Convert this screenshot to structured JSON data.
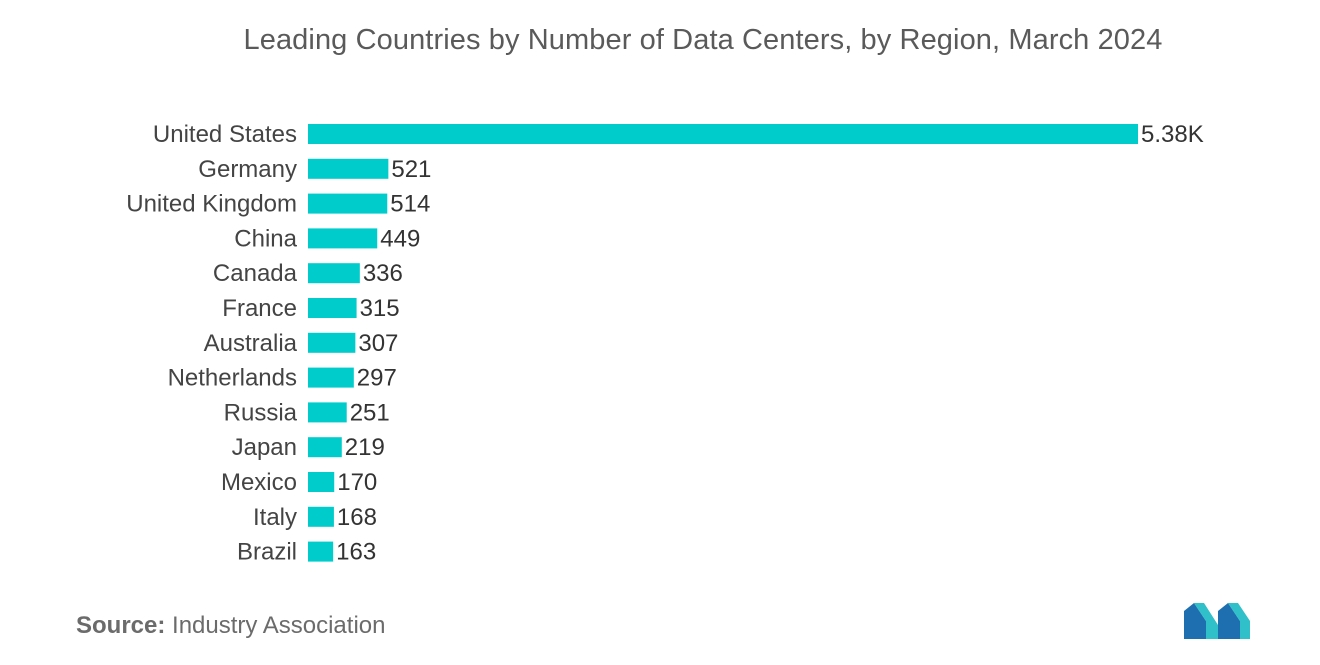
{
  "chart_data": {
    "type": "bar",
    "orientation": "horizontal",
    "title": "Leading Countries by Number of Data Centers, by Region, March 2024",
    "categories": [
      "United States",
      "Germany",
      "United Kingdom",
      "China",
      "Canada",
      "France",
      "Australia",
      "Netherlands",
      "Russia",
      "Japan",
      "Mexico",
      "Italy",
      "Brazil"
    ],
    "values": [
      5381,
      521,
      514,
      449,
      336,
      315,
      307,
      297,
      251,
      219,
      170,
      168,
      163
    ],
    "value_labels": [
      "5.38K",
      "521",
      "514",
      "449",
      "336",
      "315",
      "307",
      "297",
      "251",
      "219",
      "170",
      "168",
      "163"
    ],
    "xlim": [
      0,
      5381
    ],
    "grid": false,
    "legend": "none",
    "bar_color": "#00cccc"
  },
  "source": {
    "label": "Source:",
    "text": "Industry Association"
  },
  "logo": {
    "icon": "mordor-intelligence-logo",
    "colors": [
      "#1e6fb0",
      "#2fc0c9"
    ]
  }
}
